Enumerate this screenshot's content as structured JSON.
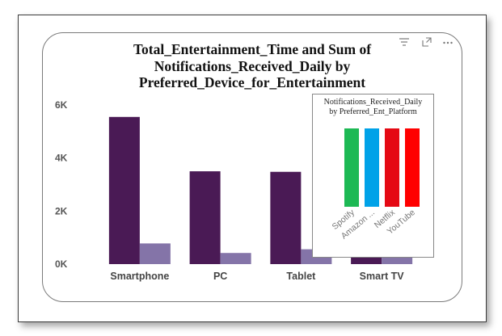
{
  "chart_data": [
    {
      "type": "bar",
      "title_lines": [
        "Total_Entertainment_Time and Sum of",
        "Notifications_Received_Daily by",
        "Preferred_Device_for_Entertainment"
      ],
      "categories": [
        "Smartphone",
        "PC",
        "Tablet",
        "Smart TV"
      ],
      "series": [
        {
          "name": "Total_Entertainment_Time",
          "values": [
            5550,
            3500,
            3480,
            1500
          ],
          "color": "#4a1a55"
        },
        {
          "name": "Sum of Notifications_Received_Daily",
          "values": [
            780,
            420,
            560,
            250
          ],
          "color": "#8474a8"
        }
      ],
      "yticks": [
        "0K",
        "2K",
        "4K",
        "6K"
      ],
      "ytick_values": [
        0,
        2000,
        4000,
        6000
      ],
      "ylim": [
        0,
        6000
      ],
      "grid": false,
      "legend": "none"
    },
    {
      "type": "bar",
      "title_lines": [
        "Notifications_Received_Daily",
        "by Preferred_Ent_Platform"
      ],
      "categories": [
        "Spotify",
        "Amazon ...",
        "Netflix",
        "YouTube"
      ],
      "values": [
        1,
        1,
        1,
        1
      ],
      "colors": [
        "#1db954",
        "#00a2e8",
        "#e50914",
        "#ff0000"
      ],
      "axes_shown": false
    }
  ],
  "header_icons": [
    "filter-icon",
    "focus-mode-icon",
    "more-options-icon"
  ]
}
